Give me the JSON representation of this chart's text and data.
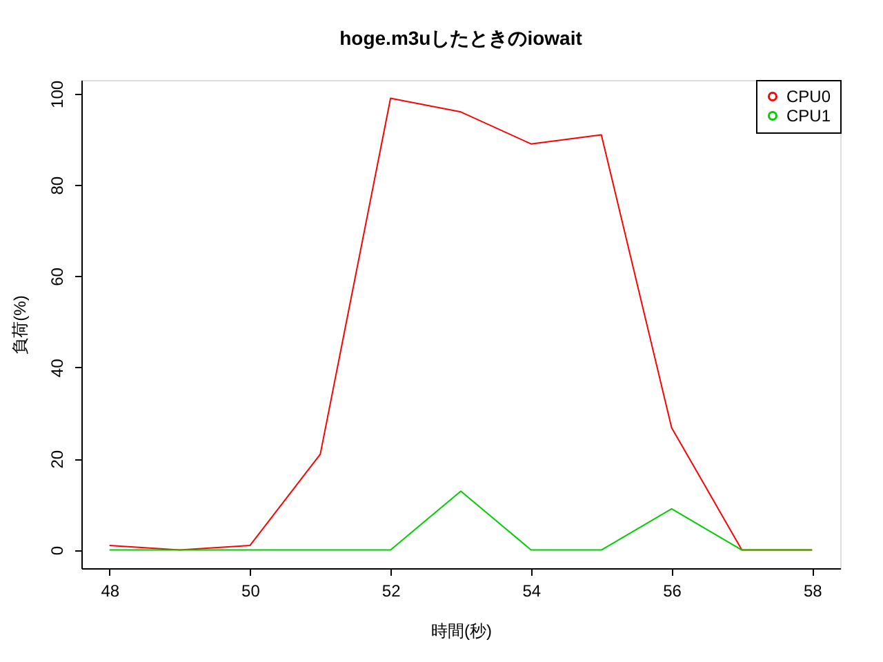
{
  "chart_data": {
    "type": "line",
    "title": "hoge.m3uしたときのiowait",
    "xlabel": "時間(秒)",
    "ylabel": "負荷(%)",
    "x": [
      48,
      49,
      50,
      51,
      52,
      53,
      54,
      55,
      56,
      57,
      58
    ],
    "series": [
      {
        "name": "CPU0",
        "color": "#ff0000",
        "values": [
          1,
          0,
          1,
          21,
          99,
          96,
          89,
          91,
          26.8,
          0,
          0
        ]
      },
      {
        "name": "CPU1",
        "color": "#00cd00",
        "values": [
          0,
          0,
          0,
          0,
          0,
          12.9,
          0,
          0,
          9,
          0,
          0
        ]
      }
    ],
    "xlim": [
      47.6,
      58.4
    ],
    "ylim": [
      -4,
      103
    ],
    "xticks": [
      48,
      50,
      52,
      54,
      56,
      58
    ],
    "yticks": [
      0,
      20,
      40,
      60,
      80,
      100
    ],
    "grid": false,
    "legend": "top right",
    "marker": "none",
    "line_style": "solid"
  }
}
